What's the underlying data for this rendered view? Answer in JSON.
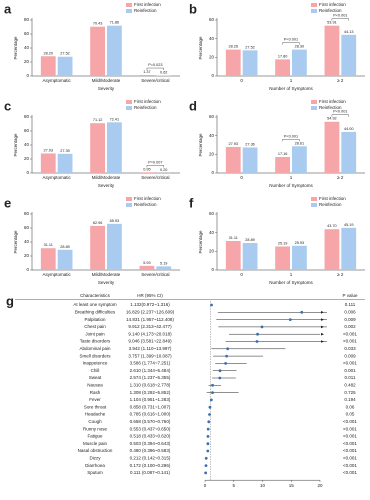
{
  "chart_data": [
    {
      "panel": "a",
      "type": "bar",
      "xlabel": "Severity",
      "ylabel": "Percentage",
      "categories": [
        "Asymptomatic",
        "Mild/Moderate",
        "Severe/critical"
      ],
      "series": [
        {
          "name": "First infection",
          "color": "#f6a5a8",
          "values": [
            28.2,
            70.43,
            1.37
          ],
          "value_labels": [
            "28.20",
            "70.43",
            "1.37"
          ]
        },
        {
          "name": "Reinfection",
          "color": "#a9cbef",
          "values": [
            27.52,
            71.86,
            0.62
          ],
          "value_labels": [
            "27.52",
            "71.86",
            "0.62"
          ]
        }
      ],
      "ylim": [
        0,
        80
      ],
      "yticks": [
        0,
        20,
        40,
        60,
        80
      ],
      "annotations": [
        {
          "at": "Severe/critical",
          "label": "P=0.023"
        }
      ]
    },
    {
      "panel": "b",
      "type": "bar",
      "xlabel": "Number of Symptoms",
      "ylabel": "Percentage",
      "categories": [
        "0",
        "1",
        "≥ 2"
      ],
      "series": [
        {
          "name": "First infection",
          "color": "#f6a5a8",
          "values": [
            28.26,
            17.8,
            53.91
          ],
          "value_labels": [
            "28.26",
            "17.80",
            "53.91"
          ]
        },
        {
          "name": "Reinfection",
          "color": "#a9cbef",
          "values": [
            27.52,
            28.3,
            44.13
          ],
          "value_labels": [
            "27.52",
            "28.30",
            "44.13"
          ]
        }
      ],
      "ylim": [
        0,
        60
      ],
      "yticks": [
        0,
        20,
        40,
        60
      ],
      "annotations": [
        {
          "at": "1",
          "label": "P<0.001"
        },
        {
          "at": "≥ 2",
          "label": "P<0.001"
        }
      ]
    },
    {
      "panel": "c",
      "type": "bar",
      "xlabel": "Severity",
      "ylabel": "Percentage",
      "categories": [
        "Asymptomatic",
        "Mild/Moderate",
        "Severe/critical"
      ],
      "series": [
        {
          "name": "First infection",
          "color": "#f6a5a8",
          "values": [
            27.93,
            71.12,
            0.95
          ],
          "value_labels": [
            "27.93",
            "71.12",
            "0.95"
          ]
        },
        {
          "name": "Reinfection",
          "color": "#a9cbef",
          "values": [
            27.39,
            72.41,
            0.2
          ],
          "value_labels": [
            "27.39",
            "72.41",
            "0.20"
          ]
        }
      ],
      "ylim": [
        0,
        80
      ],
      "yticks": [
        0,
        20,
        40,
        60,
        80
      ],
      "annotations": [
        {
          "at": "Severe/critical",
          "label": "P=0.007"
        }
      ]
    },
    {
      "panel": "d",
      "type": "bar",
      "xlabel": "Number of Symptoms",
      "ylabel": "Percentage",
      "categories": [
        "0",
        "1",
        "≥ 2"
      ],
      "series": [
        {
          "name": "First infection",
          "color": "#f6a5a8",
          "values": [
            27.93,
            17.16,
            54.92
          ],
          "value_labels": [
            "27.93",
            "17.16",
            "54.92"
          ]
        },
        {
          "name": "Reinfection",
          "color": "#a9cbef",
          "values": [
            27.36,
            28.61,
            44.0
          ],
          "value_labels": [
            "27.36",
            "28.61",
            "44.00"
          ]
        }
      ],
      "ylim": [
        0,
        60
      ],
      "yticks": [
        0,
        20,
        40,
        60
      ],
      "annotations": [
        {
          "at": "1",
          "label": "P<0.001"
        },
        {
          "at": "≥ 2",
          "label": "P<0.001"
        }
      ]
    },
    {
      "panel": "e",
      "type": "bar",
      "xlabel": "Severity",
      "ylabel": "Percentage",
      "categories": [
        "Asymptomatic",
        "Mild/Moderate",
        "Severe/critical"
      ],
      "series": [
        {
          "name": "First infection",
          "color": "#f6a5a8",
          "values": [
            31.11,
            62.96,
            5.93
          ],
          "value_labels": [
            "31.11",
            "62.96",
            "5.93"
          ]
        },
        {
          "name": "Reinfection",
          "color": "#a9cbef",
          "values": [
            28.89,
            65.93,
            5.19
          ],
          "value_labels": [
            "28.89",
            "65.93",
            "5.19"
          ]
        }
      ],
      "ylim": [
        0,
        80
      ],
      "yticks": [
        0,
        20,
        40,
        60,
        80
      ],
      "annotations": []
    },
    {
      "panel": "f",
      "type": "bar",
      "xlabel": "Number of Symptoms",
      "ylabel": "Percentage",
      "categories": [
        "0",
        "1",
        "≥ 2"
      ],
      "series": [
        {
          "name": "First infection",
          "color": "#f6a5a8",
          "values": [
            31.11,
            25.19,
            43.7
          ],
          "value_labels": [
            "31.11",
            "25.19",
            "43.70"
          ]
        },
        {
          "name": "Reinfection",
          "color": "#a9cbef",
          "values": [
            28.89,
            25.93,
            45.19
          ],
          "value_labels": [
            "28.89",
            "25.93",
            "45.19"
          ]
        }
      ],
      "ylim": [
        0,
        60
      ],
      "yticks": [
        0,
        20,
        40,
        60
      ],
      "annotations": []
    },
    {
      "panel": "g",
      "type": "forest",
      "headers": {
        "characteristic": "Characteristics",
        "hr": "HR (95% CI)",
        "p": "P value"
      },
      "xlim": [
        0,
        20
      ],
      "xticks": [
        0,
        5,
        10,
        15,
        20
      ],
      "reference": 1,
      "rows": [
        {
          "name": "At least one symptom",
          "hr": 1.132,
          "lo": 0.972,
          "hi": 1.316,
          "hr_label": "1.132(0.972~1.316)",
          "p_label": "0.111"
        },
        {
          "name": "Breathing difficulties",
          "hr": 16.829,
          "lo": 2.237,
          "hi": 126.609,
          "hr_label": "16.829 (2.237~126.609)",
          "p_label": "0.006"
        },
        {
          "name": "Palpitation",
          "hr": 14.831,
          "lo": 1.957,
          "hi": 112.408,
          "hr_label": "14.831 (1.957~112.408)",
          "p_label": "0.009"
        },
        {
          "name": "Chest pain",
          "hr": 9.912,
          "lo": 2.313,
          "hi": 42.477,
          "hr_label": "9.912 (2.313~42.477)",
          "p_label": "0.002"
        },
        {
          "name": "Joint pain",
          "hr": 9.14,
          "lo": 4.173,
          "hi": 20.018,
          "hr_label": "9.140 (4.173~20.018)",
          "p_label": "<0.001"
        },
        {
          "name": "Taste disorders",
          "hr": 9.046,
          "lo": 3.581,
          "hi": 22.849,
          "hr_label": "9.046 (3.581~22.849)",
          "p_label": "<0.001"
        },
        {
          "name": "Abdominal pain",
          "hr": 3.942,
          "lo": 1.11,
          "hi": 13.997,
          "hr_label": "3.942 (1.110~13.997)",
          "p_label": "0.033"
        },
        {
          "name": "Smell disorders",
          "hr": 3.757,
          "lo": 1.399,
          "hi": 10.087,
          "hr_label": "3.757 (1.399~10.087)",
          "p_label": "0.009"
        },
        {
          "name": "Inappetence",
          "hr": 3.586,
          "lo": 1.774,
          "hi": 7.251,
          "hr_label": "3.586 (1.774~7.251)",
          "p_label": "<0.001"
        },
        {
          "name": "Chill",
          "hr": 2.61,
          "lo": 1.344,
          "hi": 5.484,
          "hr_label": "2.610 (1.344~5.484)",
          "p_label": "0.001"
        },
        {
          "name": "Sweat",
          "hr": 2.574,
          "lo": 1.237,
          "hi": 5.355,
          "hr_label": "2.574 (1.237~5.355)",
          "p_label": "0.011"
        },
        {
          "name": "Nausea",
          "hr": 1.31,
          "lo": 0.618,
          "hi": 2.778,
          "hr_label": "1.310 (0.618~2.778)",
          "p_label": "0.482"
        },
        {
          "name": "Rash",
          "hr": 1.308,
          "lo": 0.292,
          "hi": 5.852,
          "hr_label": "1.308 (0.292~5.852)",
          "p_label": "0.725"
        },
        {
          "name": "Fever",
          "hr": 1.104,
          "lo": 0.951,
          "hi": 1.283,
          "hr_label": "1.104 (0.951~1.283)",
          "p_label": "0.194"
        },
        {
          "name": "Sore throat",
          "hr": 0.858,
          "lo": 0.731,
          "hi": 1.007,
          "hr_label": "0.858 (0.731~1.007)",
          "p_label": "0.06"
        },
        {
          "name": "Headache",
          "hr": 0.785,
          "lo": 0.616,
          "hi": 1.0,
          "hr_label": "0.785 (0.616~1.000)",
          "p_label": "0.05"
        },
        {
          "name": "Cough",
          "hr": 0.658,
          "lo": 0.57,
          "hi": 0.76,
          "hr_label": "0.658 (0.570~0.760)",
          "p_label": "<0.001"
        },
        {
          "name": "Runny nose",
          "hr": 0.553,
          "lo": 0.437,
          "hi": 0.65,
          "hr_label": "0.553 (0.437~0.650)",
          "p_label": "<0.001"
        },
        {
          "name": "Fatigue",
          "hr": 0.518,
          "lo": 0.433,
          "hi": 0.62,
          "hr_label": "0.518 (0.433~0.620)",
          "p_label": "<0.001"
        },
        {
          "name": "Muscle pain",
          "hr": 0.503,
          "lo": 0.394,
          "hi": 0.643,
          "hr_label": "0.503 (0.394~0.643)",
          "p_label": "<0.001"
        },
        {
          "name": "Nasal obstruction",
          "hr": 0.48,
          "lo": 0.396,
          "hi": 0.583,
          "hr_label": "0.480 (0.396~0.583)",
          "p_label": "<0.001"
        },
        {
          "name": "Dizzy",
          "hr": 0.212,
          "lo": 0.142,
          "hi": 0.315,
          "hr_label": "0.212 (0.142~0.315)",
          "p_label": "<0.001"
        },
        {
          "name": "Diarrhoea",
          "hr": 0.172,
          "lo": 0.1,
          "hi": 0.296,
          "hr_label": "0.172 (0.100~0.296)",
          "p_label": "<0.001"
        },
        {
          "name": "Sputum",
          "hr": 0.111,
          "lo": 0.087,
          "hi": 0.141,
          "hr_label": "0.111 (0.087~0.141)",
          "p_label": "<0.001"
        }
      ]
    }
  ]
}
